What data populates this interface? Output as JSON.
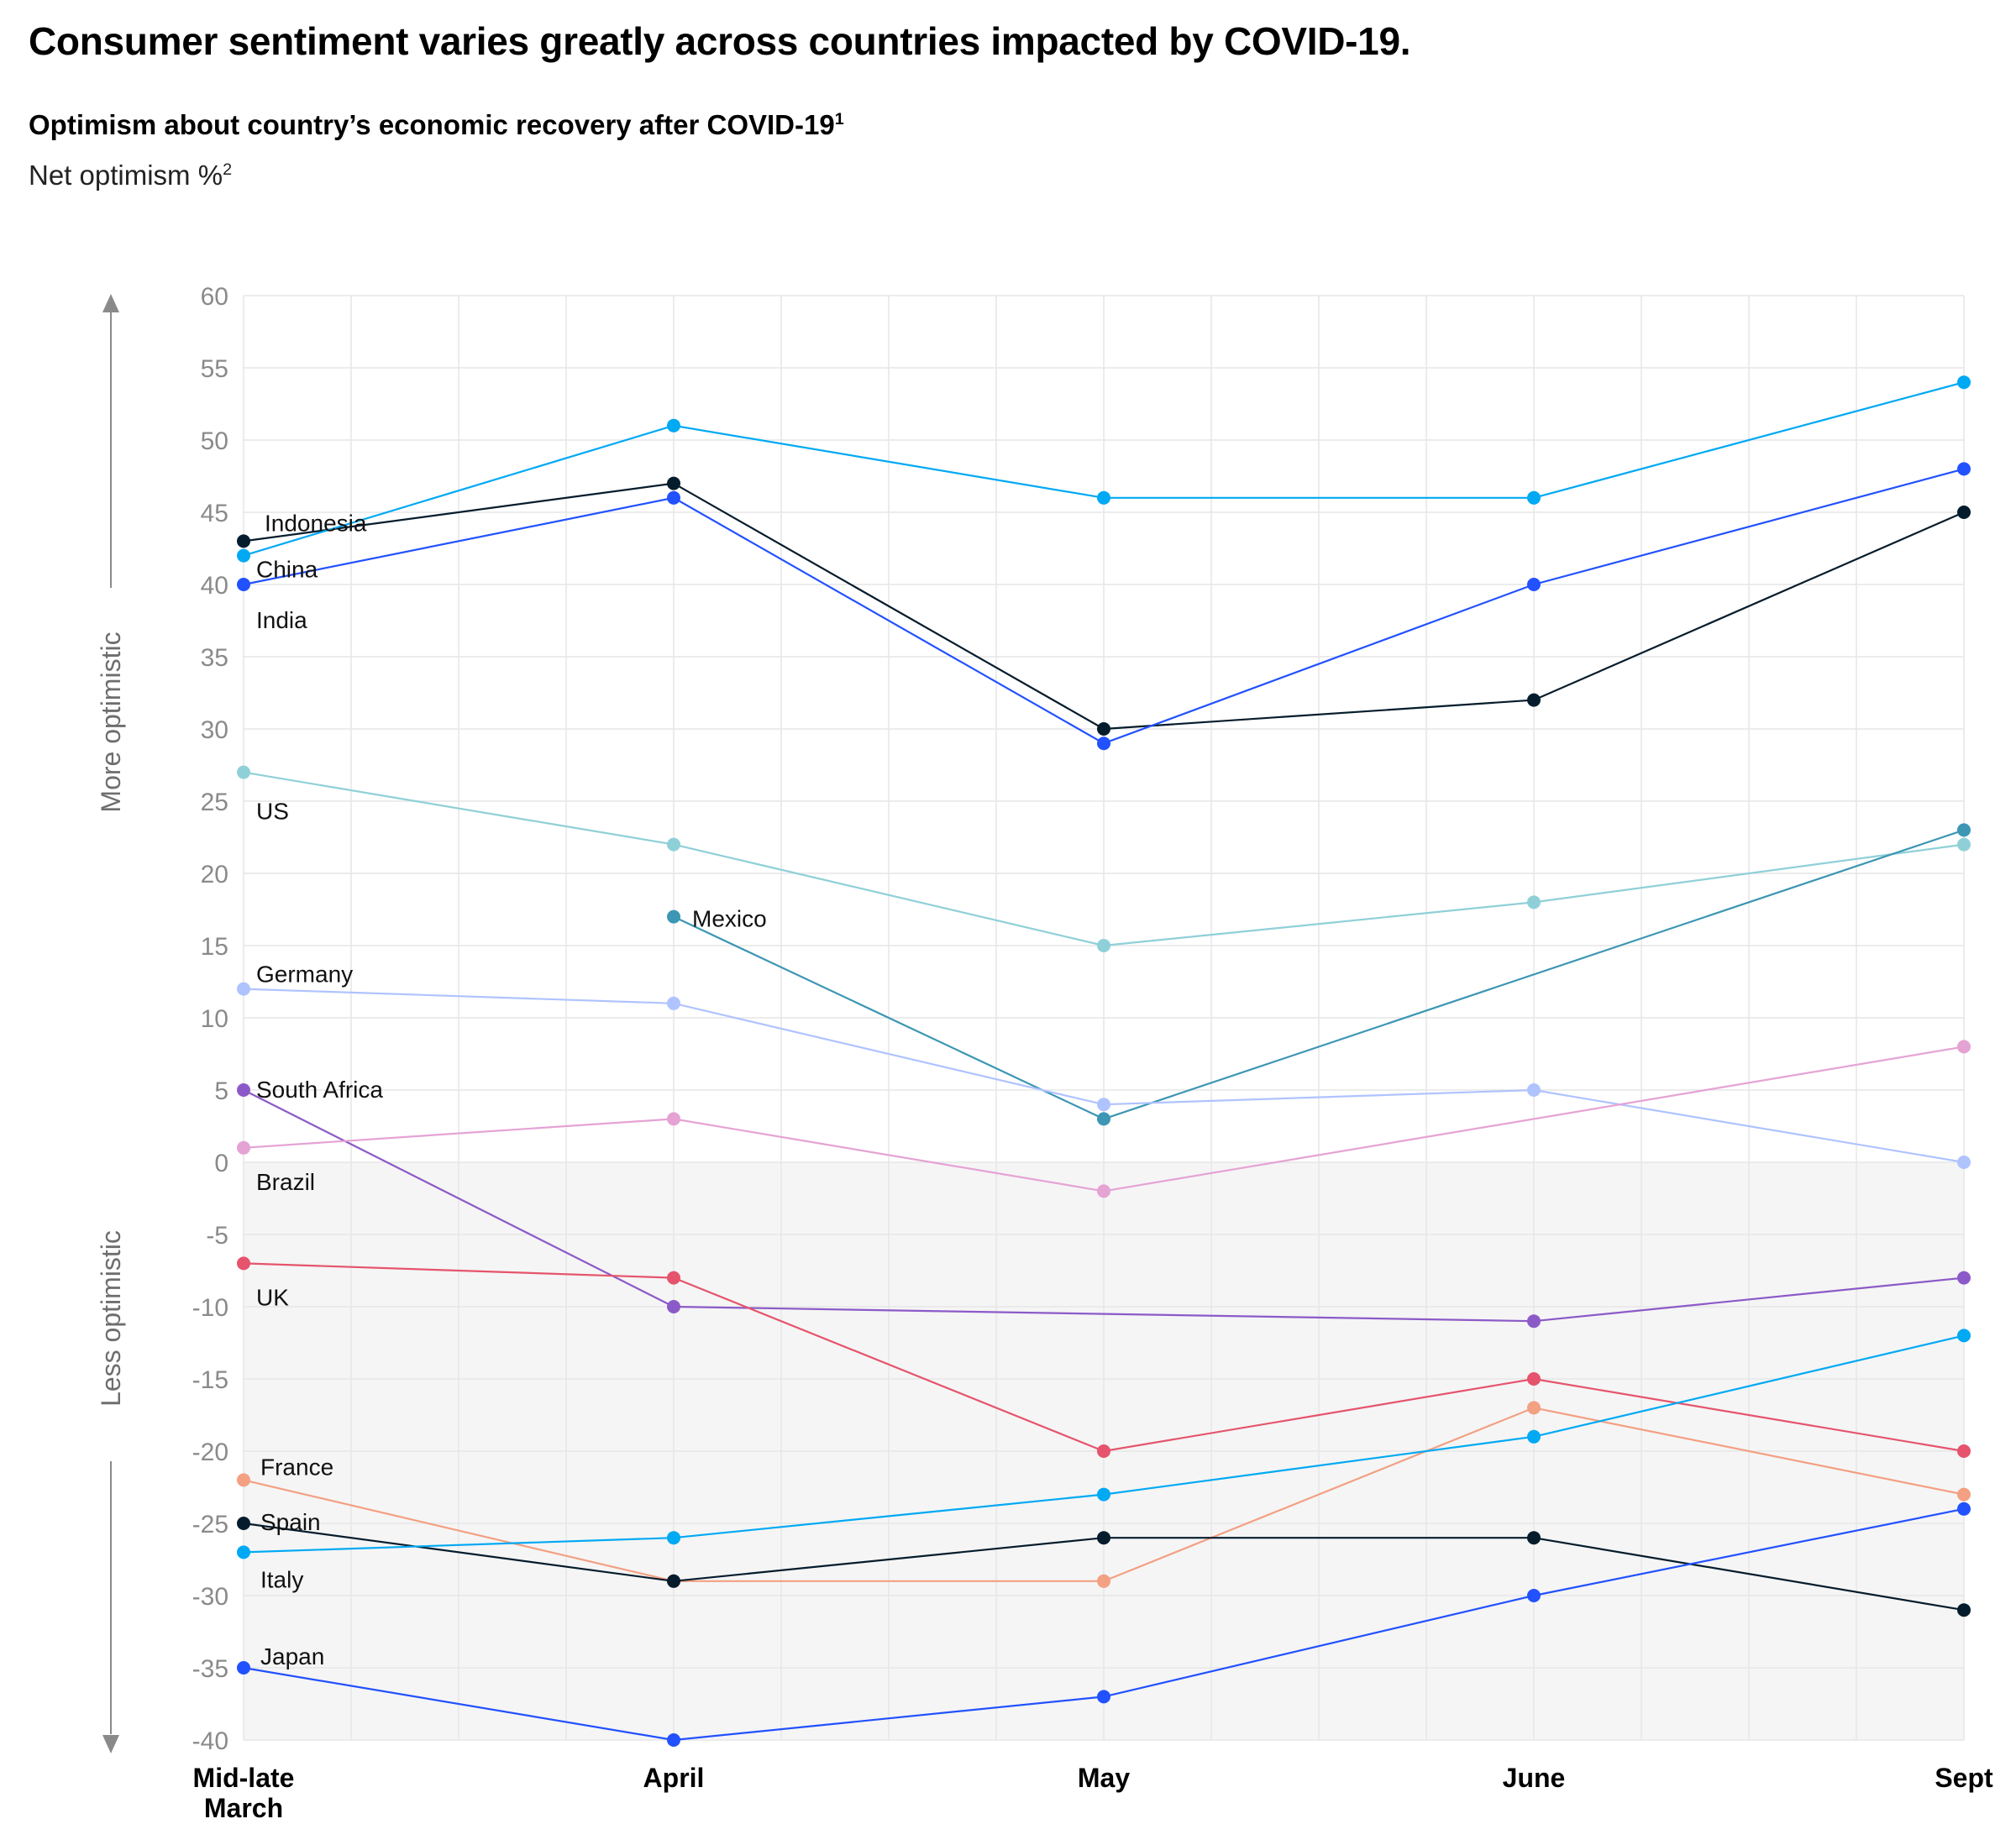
{
  "title": "Consumer sentiment varies greatly across countries impacted by COVID-19.",
  "subtitle": "Optimism about country’s economic recovery after COVID-19",
  "subtitle_note": "1",
  "unit_label": "Net optimism %",
  "unit_note": "2",
  "chart_data": {
    "type": "line",
    "title": "Optimism about country’s economic recovery after COVID-19",
    "ylabel": "Net optimism %",
    "ylim": [
      -40,
      60
    ],
    "yticks": [
      60,
      55,
      50,
      45,
      40,
      35,
      30,
      25,
      20,
      15,
      10,
      5,
      0,
      -5,
      -10,
      -15,
      -20,
      -25,
      -30,
      -35,
      -40
    ],
    "categories": [
      "Mid-late March",
      "April",
      "May",
      "June",
      "Sept"
    ],
    "category_lines": [
      [
        "Mid-late",
        "March"
      ],
      [
        "April"
      ],
      [
        "May"
      ],
      [
        "June"
      ],
      [
        "Sept"
      ]
    ],
    "direction_labels": {
      "up": "More optimistic",
      "down": "Less optimistic"
    },
    "negative_region_shaded": true,
    "series": [
      {
        "name": "Indonesia",
        "color": "#051c2c",
        "values": [
          43,
          47,
          30,
          32,
          45
        ]
      },
      {
        "name": "China",
        "color": "#00a9f4",
        "values": [
          42,
          51,
          46,
          46,
          54
        ]
      },
      {
        "name": "India",
        "color": "#2251ff",
        "values": [
          40,
          46,
          29,
          40,
          48
        ]
      },
      {
        "name": "US",
        "color": "#8fd0d8",
        "values": [
          27,
          22,
          15,
          18,
          22
        ]
      },
      {
        "name": "Mexico",
        "color": "#3c96b4",
        "values": [
          null,
          17,
          3,
          null,
          23
        ]
      },
      {
        "name": "Germany",
        "color": "#afc3ff",
        "values": [
          12,
          11,
          4,
          5,
          0
        ]
      },
      {
        "name": "South Africa",
        "color": "#8c5ac8",
        "values": [
          5,
          -10,
          null,
          -11,
          -8
        ]
      },
      {
        "name": "Brazil",
        "color": "#e5a3d4",
        "values": [
          1,
          3,
          -2,
          null,
          8
        ]
      },
      {
        "name": "UK",
        "color": "#e5546c",
        "values": [
          -7,
          -8,
          -20,
          -15,
          -20
        ]
      },
      {
        "name": "France",
        "color": "#f3a083",
        "values": [
          -22,
          -29,
          -29,
          -17,
          -23
        ]
      },
      {
        "name": "Spain",
        "color": "#051c2c",
        "values": [
          -25,
          -29,
          -26,
          -26,
          -31
        ]
      },
      {
        "name": "Italy",
        "color": "#00a9f4",
        "values": [
          -27,
          -26,
          -23,
          -19,
          -12
        ]
      },
      {
        "name": "Japan",
        "color": "#2251ff",
        "values": [
          -35,
          -40,
          -37,
          -30,
          -24
        ]
      }
    ]
  }
}
